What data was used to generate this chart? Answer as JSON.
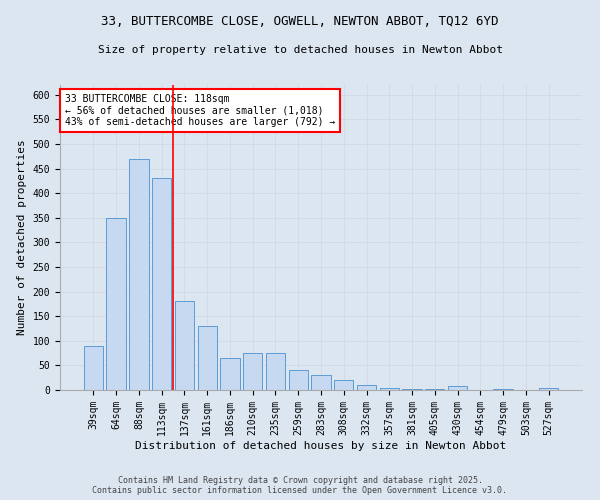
{
  "title1": "33, BUTTERCOMBE CLOSE, OGWELL, NEWTON ABBOT, TQ12 6YD",
  "title2": "Size of property relative to detached houses in Newton Abbot",
  "xlabel": "Distribution of detached houses by size in Newton Abbot",
  "ylabel": "Number of detached properties",
  "categories": [
    "39sqm",
    "64sqm",
    "88sqm",
    "113sqm",
    "137sqm",
    "161sqm",
    "186sqm",
    "210sqm",
    "235sqm",
    "259sqm",
    "283sqm",
    "308sqm",
    "332sqm",
    "357sqm",
    "381sqm",
    "405sqm",
    "430sqm",
    "454sqm",
    "479sqm",
    "503sqm",
    "527sqm"
  ],
  "values": [
    90,
    350,
    470,
    430,
    180,
    130,
    65,
    75,
    75,
    40,
    30,
    20,
    10,
    5,
    3,
    2,
    8,
    1,
    3,
    1,
    4
  ],
  "bar_color": "#c6d9f0",
  "bar_edge_color": "#5b9bd5",
  "grid_color": "#d0d8e4",
  "bg_color": "#dce6f1",
  "vline_x": 3.5,
  "vline_color": "red",
  "annotation_title": "33 BUTTERCOMBE CLOSE: 118sqm",
  "annotation_line1": "← 56% of detached houses are smaller (1,018)",
  "annotation_line2": "43% of semi-detached houses are larger (792) →",
  "annotation_box_color": "white",
  "annotation_box_edgecolor": "red",
  "ylim": [
    0,
    620
  ],
  "yticks": [
    0,
    50,
    100,
    150,
    200,
    250,
    300,
    350,
    400,
    450,
    500,
    550,
    600
  ],
  "footnote": "Contains HM Land Registry data © Crown copyright and database right 2025.\nContains public sector information licensed under the Open Government Licence v3.0.",
  "title1_fontsize": 9,
  "title2_fontsize": 8,
  "xlabel_fontsize": 8,
  "ylabel_fontsize": 8,
  "tick_fontsize": 7,
  "annotation_fontsize": 7,
  "footnote_fontsize": 6
}
